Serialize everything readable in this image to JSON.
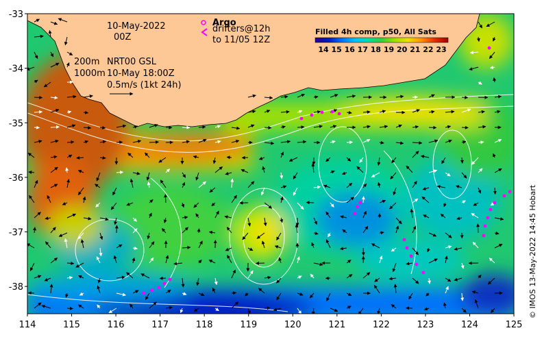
{
  "map": {
    "lon_ticks": [
      "114",
      "115",
      "116",
      "117",
      "118",
      "119",
      "120",
      "121",
      "122",
      "123",
      "124",
      "125"
    ],
    "lat_ticks": [
      "-33",
      "-34",
      "-35",
      "-36",
      "-37",
      "-38"
    ],
    "lon_range": [
      114,
      125
    ],
    "lat_range": [
      -38.5,
      -33
    ]
  },
  "annotations": {
    "date": "10-May-2022",
    "time": "00Z",
    "contour_200": "200m",
    "contour_1000": "1000m",
    "model_name": "NRT00 GSL",
    "model_time": "10-May 18:00Z",
    "scale_label": "0.5m/s (1kt 24h)"
  },
  "argo_legend": {
    "title": "Argo",
    "line1": "drifters@12h",
    "line2": "to 11/05 12Z"
  },
  "colorbar": {
    "title": "Filled 4h comp, p50, All Sats",
    "ticks": [
      "14",
      "15",
      "16",
      "17",
      "18",
      "19",
      "20",
      "21",
      "22",
      "23"
    ]
  },
  "credit": "© IMOS 13-May-2022 14:45 Hobart",
  "colors": {
    "land": "#fdc896",
    "warm": "#c85a10",
    "drifter": "#ff00ff",
    "scale": [
      "#2a0090",
      "#0018c8",
      "#0070ff",
      "#00c0ff",
      "#00e0a0",
      "#30d040",
      "#a0e000",
      "#f0e000",
      "#ff9000",
      "#e03000",
      "#a00000"
    ]
  }
}
